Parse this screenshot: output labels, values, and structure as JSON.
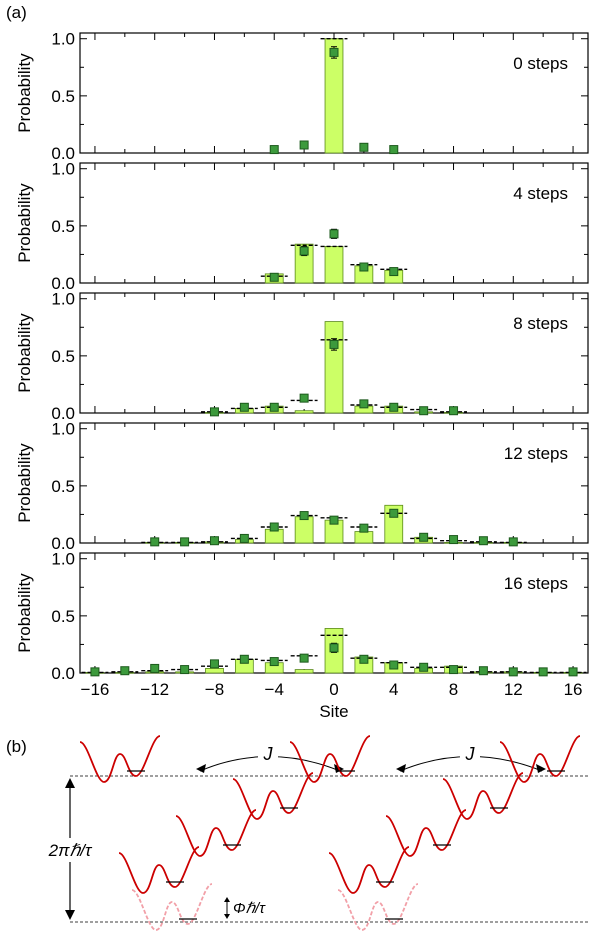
{
  "figure": {
    "panel_a_label": "(a)",
    "panel_b_label": "(b)"
  },
  "chart_data": [
    {
      "type": "bar",
      "panel": "0 steps",
      "ylabel": "Probability",
      "xlabel": "",
      "xlim": [
        -17,
        17
      ],
      "ylim": [
        0,
        1.05
      ],
      "yticks": [
        "0.0",
        "0.5",
        "1.0"
      ],
      "series": [
        {
          "name": "bars",
          "x": [
            0
          ],
          "values": [
            1.0
          ]
        },
        {
          "name": "dashes",
          "x": [
            0
          ],
          "values": [
            1.0
          ]
        },
        {
          "name": "squares",
          "x": [
            -4,
            -2,
            0,
            2,
            4
          ],
          "values": [
            0.03,
            0.07,
            0.88,
            0.05,
            0.03
          ],
          "err": [
            0.01,
            0.02,
            0.05,
            0.01,
            0.01
          ]
        }
      ]
    },
    {
      "type": "bar",
      "panel": "4 steps",
      "ylabel": "Probability",
      "xlabel": "",
      "xlim": [
        -17,
        17
      ],
      "ylim": [
        0,
        1.05
      ],
      "yticks": [
        "0.0",
        "0.5",
        "1.0"
      ],
      "series": [
        {
          "name": "bars",
          "x": [
            -4,
            -2,
            0,
            2,
            4
          ],
          "values": [
            0.08,
            0.34,
            0.32,
            0.15,
            0.11
          ]
        },
        {
          "name": "dashes",
          "x": [
            -4,
            -2,
            0,
            2,
            4
          ],
          "values": [
            0.06,
            0.33,
            0.32,
            0.16,
            0.12
          ]
        },
        {
          "name": "squares",
          "x": [
            -4,
            -2,
            0,
            2,
            4
          ],
          "values": [
            0.05,
            0.28,
            0.43,
            0.14,
            0.1
          ],
          "err": [
            0.02,
            0.04,
            0.04,
            0.02,
            0.02
          ]
        }
      ]
    },
    {
      "type": "bar",
      "panel": "8 steps",
      "ylabel": "Probability",
      "xlabel": "",
      "xlim": [
        -17,
        17
      ],
      "ylim": [
        0,
        1.05
      ],
      "yticks": [
        "0.0",
        "0.5",
        "1.0"
      ],
      "series": [
        {
          "name": "bars",
          "x": [
            -8,
            -6,
            -4,
            -2,
            0,
            2,
            4,
            6,
            8
          ],
          "values": [
            0.005,
            0.04,
            0.06,
            0.02,
            0.8,
            0.06,
            0.06,
            0.01,
            0.005
          ]
        },
        {
          "name": "dashes",
          "x": [
            -8,
            -6,
            -4,
            -2,
            0,
            2,
            4,
            6,
            8
          ],
          "values": [
            0.01,
            0.04,
            0.05,
            0.11,
            0.64,
            0.07,
            0.05,
            0.03,
            0.01
          ]
        },
        {
          "name": "squares",
          "x": [
            -8,
            -6,
            -4,
            -2,
            0,
            2,
            4,
            6,
            8
          ],
          "values": [
            0.01,
            0.05,
            0.05,
            0.13,
            0.6,
            0.08,
            0.05,
            0.02,
            0.02
          ],
          "err": [
            0.01,
            0.01,
            0.01,
            0.02,
            0.05,
            0.02,
            0.01,
            0.01,
            0.01
          ]
        }
      ]
    },
    {
      "type": "bar",
      "panel": "12 steps",
      "ylabel": "Probability",
      "xlabel": "",
      "xlim": [
        -17,
        17
      ],
      "ylim": [
        0,
        1.05
      ],
      "yticks": [
        "0.0",
        "0.5",
        "1.0"
      ],
      "series": [
        {
          "name": "bars",
          "x": [
            -12,
            -10,
            -8,
            -6,
            -4,
            -2,
            0,
            2,
            4,
            6,
            8,
            10,
            12
          ],
          "values": [
            0.005,
            0.005,
            0.01,
            0.03,
            0.12,
            0.23,
            0.2,
            0.1,
            0.33,
            0.05,
            0.005,
            0.005,
            0.005
          ]
        },
        {
          "name": "dashes",
          "x": [
            -12,
            -10,
            -8,
            -6,
            -4,
            -2,
            0,
            2,
            4,
            6,
            8,
            10,
            12
          ],
          "values": [
            0.005,
            0.005,
            0.01,
            0.04,
            0.14,
            0.24,
            0.22,
            0.14,
            0.26,
            0.04,
            0.02,
            0.01,
            0.005
          ]
        },
        {
          "name": "squares",
          "x": [
            -12,
            -10,
            -8,
            -6,
            -4,
            -2,
            0,
            2,
            4,
            6,
            8,
            10,
            12
          ],
          "values": [
            0.01,
            0.01,
            0.02,
            0.04,
            0.14,
            0.24,
            0.2,
            0.13,
            0.26,
            0.05,
            0.03,
            0.02,
            0.01
          ],
          "err": [
            0.01,
            0.01,
            0.01,
            0.01,
            0.02,
            0.03,
            0.03,
            0.02,
            0.03,
            0.01,
            0.01,
            0.01,
            0.01
          ]
        }
      ]
    },
    {
      "type": "bar",
      "panel": "16 steps",
      "ylabel": "Probability",
      "xlabel": "Site",
      "xlim": [
        -17,
        17
      ],
      "ylim": [
        0,
        1.05
      ],
      "yticks": [
        "0.0",
        "0.5",
        "1.0"
      ],
      "xticks": [
        "-16",
        "-12",
        "-8",
        "-4",
        "0",
        "4",
        "8",
        "12",
        "16"
      ],
      "series": [
        {
          "name": "bars",
          "x": [
            -16,
            -14,
            -12,
            -10,
            -8,
            -6,
            -4,
            -2,
            0,
            2,
            4,
            6,
            8,
            10,
            12,
            14,
            16
          ],
          "values": [
            0.005,
            0.005,
            0.01,
            0.01,
            0.04,
            0.12,
            0.09,
            0.03,
            0.39,
            0.14,
            0.09,
            0.04,
            0.06,
            0.01,
            0.01,
            0.005,
            0.005
          ]
        },
        {
          "name": "dashes",
          "x": [
            -16,
            -14,
            -12,
            -10,
            -8,
            -6,
            -4,
            -2,
            0,
            2,
            4,
            6,
            8,
            10,
            12,
            14,
            16
          ],
          "values": [
            0.005,
            0.01,
            0.02,
            0.03,
            0.06,
            0.12,
            0.11,
            0.15,
            0.33,
            0.13,
            0.09,
            0.05,
            0.05,
            0.01,
            0.01,
            0.005,
            0.005
          ]
        },
        {
          "name": "squares",
          "x": [
            -16,
            -14,
            -12,
            -10,
            -8,
            -6,
            -4,
            -2,
            0,
            2,
            4,
            6,
            8,
            10,
            12,
            14,
            16
          ],
          "values": [
            0.01,
            0.02,
            0.04,
            0.03,
            0.08,
            0.12,
            0.1,
            0.13,
            0.22,
            0.12,
            0.07,
            0.05,
            0.03,
            0.02,
            0.01,
            0.01,
            0.01
          ],
          "err": [
            0.01,
            0.01,
            0.01,
            0.01,
            0.02,
            0.03,
            0.02,
            0.02,
            0.04,
            0.02,
            0.02,
            0.01,
            0.01,
            0.01,
            0.01,
            0.01,
            0.01
          ]
        }
      ]
    }
  ],
  "diagram": {
    "coupling_label_1": "J",
    "coupling_label_2": "J",
    "height_label": "2πℏ/τ",
    "offset_label": "Φℏ/τ"
  },
  "colors": {
    "bar_fill": "#ccff66",
    "bar_stroke": "#5a8a1a",
    "square_fill": "#3c9a3c",
    "square_stroke": "#1d5a1d",
    "curve": "#cc0000",
    "curve_faded": "#f2a0a8"
  }
}
